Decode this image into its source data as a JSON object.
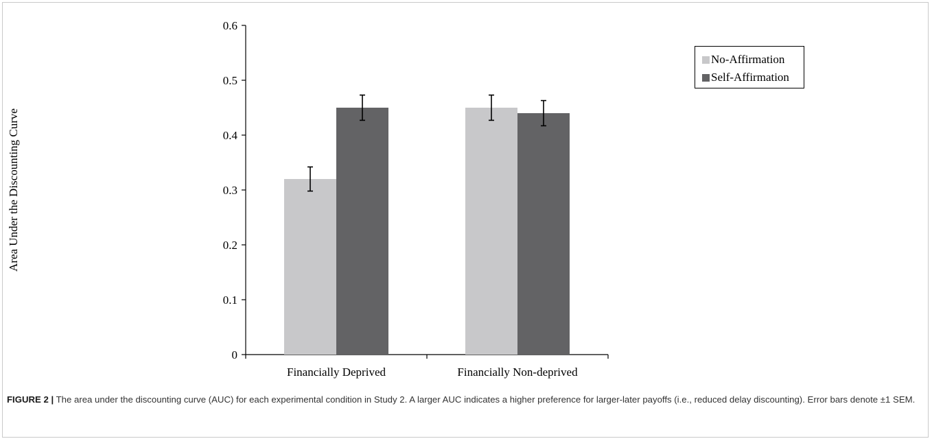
{
  "caption": {
    "label": "FIGURE 2 |",
    "text": " The area under the discounting curve (AUC) for each experimental condition in Study 2. A larger AUC indicates a higher preference for larger-later payoffs (i.e., reduced delay discounting). Error bars denote ±1 SEM."
  },
  "chart_data": {
    "type": "bar",
    "title": "",
    "xlabel": "",
    "ylabel": "Area Under the Discounting Curve",
    "ylim": [
      0,
      0.6
    ],
    "yticks": [
      "0",
      "0.1",
      "0.2",
      "0.3",
      "0.4",
      "0.5",
      "0.6"
    ],
    "categories": [
      "Financially Deprived",
      "Financially Non-deprived"
    ],
    "series": [
      {
        "name": "No-Affirmation",
        "color": "#c8c8ca",
        "values": [
          0.32,
          0.45
        ],
        "errors": [
          0.022,
          0.023
        ]
      },
      {
        "name": "Self-Affirmation",
        "color": "#636365",
        "values": [
          0.45,
          0.44
        ],
        "errors": [
          0.023,
          0.023
        ]
      }
    ],
    "legend_position": "top-right",
    "grid": false
  }
}
